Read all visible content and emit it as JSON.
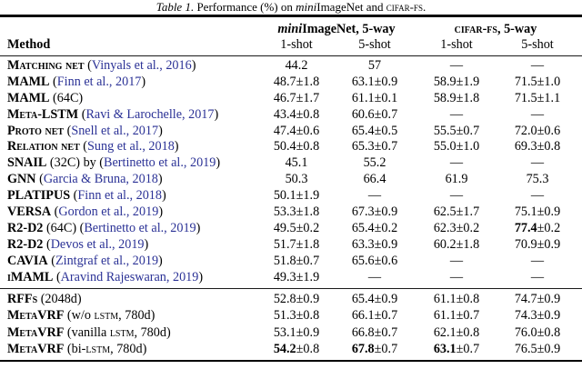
{
  "colors": {
    "citation": "#2b3296",
    "text": "#000000",
    "background": "#ffffff"
  },
  "caption": {
    "parts": [
      {
        "text": "Table 1.",
        "style": "italic"
      },
      {
        "text": " Performance (%) on ",
        "style": "plain"
      },
      {
        "text": "mini",
        "style": "italic"
      },
      {
        "text": "ImageNet and ",
        "style": "plain"
      },
      {
        "text": "CIFAR-FS",
        "style": "sc-lower"
      },
      {
        "text": ".",
        "style": "plain"
      }
    ]
  },
  "header": {
    "method_label": "Method",
    "groups": [
      {
        "parts": [
          {
            "text": "mini",
            "style": "bold-italic"
          },
          {
            "text": "ImageNet, 5-way",
            "style": "bold"
          }
        ]
      },
      {
        "parts": [
          {
            "text": "CIFAR-FS",
            "style": "sc-lower-bold"
          },
          {
            "text": ", 5-way",
            "style": "bold"
          }
        ]
      }
    ],
    "subcols": [
      "1-shot",
      "5-shot",
      "1-shot",
      "5-shot"
    ]
  },
  "table": {
    "sections": [
      {
        "rows": [
          {
            "method": [
              {
                "text": "Matching net",
                "style": "sc-bold"
              },
              {
                "text": " (",
                "style": "plain"
              },
              {
                "text": "Vinyals et al., 2016",
                "style": "cite"
              },
              {
                "text": ")",
                "style": "plain"
              }
            ],
            "cells": [
              {
                "main": "44.2",
                "err": "",
                "bold": false
              },
              {
                "main": "57",
                "err": "",
                "bold": false
              },
              {
                "main": "—",
                "err": "",
                "bold": false
              },
              {
                "main": "—",
                "err": "",
                "bold": false
              }
            ]
          },
          {
            "method": [
              {
                "text": "MAML",
                "style": "sc-bold"
              },
              {
                "text": " (",
                "style": "plain"
              },
              {
                "text": "Finn et al., 2017",
                "style": "cite"
              },
              {
                "text": ")",
                "style": "plain"
              }
            ],
            "cells": [
              {
                "main": "48.7",
                "err": "±1.8",
                "bold": false
              },
              {
                "main": "63.1",
                "err": "±0.9",
                "bold": false
              },
              {
                "main": "58.9",
                "err": "±1.9",
                "bold": false
              },
              {
                "main": "71.5",
                "err": "±1.0",
                "bold": false
              }
            ]
          },
          {
            "method": [
              {
                "text": "MAML",
                "style": "sc-bold"
              },
              {
                "text": " (64C)",
                "style": "plain"
              }
            ],
            "cells": [
              {
                "main": "46.7",
                "err": "±1.7",
                "bold": false
              },
              {
                "main": "61.1",
                "err": "±0.1",
                "bold": false
              },
              {
                "main": "58.9",
                "err": "±1.8",
                "bold": false
              },
              {
                "main": "71.5",
                "err": "±1.1",
                "bold": false
              }
            ]
          },
          {
            "method": [
              {
                "text": "Meta-LSTM",
                "style": "sc-bold"
              },
              {
                "text": " (",
                "style": "plain"
              },
              {
                "text": "Ravi & Larochelle, 2017",
                "style": "cite"
              },
              {
                "text": ")",
                "style": "plain"
              }
            ],
            "cells": [
              {
                "main": "43.4",
                "err": "±0.8",
                "bold": false
              },
              {
                "main": "60.6",
                "err": "±0.7",
                "bold": false
              },
              {
                "main": "—",
                "err": "",
                "bold": false
              },
              {
                "main": "—",
                "err": "",
                "bold": false
              }
            ]
          },
          {
            "method": [
              {
                "text": "Proto net",
                "style": "sc-bold"
              },
              {
                "text": " (",
                "style": "plain"
              },
              {
                "text": "Snell et al., 2017",
                "style": "cite"
              },
              {
                "text": ")",
                "style": "plain"
              }
            ],
            "cells": [
              {
                "main": "47.4",
                "err": "±0.6",
                "bold": false
              },
              {
                "main": "65.4",
                "err": "±0.5",
                "bold": false
              },
              {
                "main": "55.5",
                "err": "±0.7",
                "bold": false
              },
              {
                "main": "72.0",
                "err": "±0.6",
                "bold": false
              }
            ]
          },
          {
            "method": [
              {
                "text": "Relation net",
                "style": "sc-bold"
              },
              {
                "text": " (",
                "style": "plain"
              },
              {
                "text": "Sung et al., 2018",
                "style": "cite"
              },
              {
                "text": ")",
                "style": "plain"
              }
            ],
            "cells": [
              {
                "main": "50.4",
                "err": "±0.8",
                "bold": false
              },
              {
                "main": "65.3",
                "err": "±0.7",
                "bold": false
              },
              {
                "main": "55.0",
                "err": "±1.0",
                "bold": false
              },
              {
                "main": "69.3",
                "err": "±0.8",
                "bold": false
              }
            ]
          },
          {
            "method": [
              {
                "text": "SNAIL",
                "style": "sc-bold"
              },
              {
                "text": " (32C) by (",
                "style": "plain"
              },
              {
                "text": "Bertinetto et al., 2019",
                "style": "cite"
              },
              {
                "text": ")",
                "style": "plain"
              }
            ],
            "cells": [
              {
                "main": "45.1",
                "err": "",
                "bold": false
              },
              {
                "main": "55.2",
                "err": "",
                "bold": false
              },
              {
                "main": "—",
                "err": "",
                "bold": false
              },
              {
                "main": "—",
                "err": "",
                "bold": false
              }
            ]
          },
          {
            "method": [
              {
                "text": "GNN",
                "style": "sc-bold"
              },
              {
                "text": " (",
                "style": "plain"
              },
              {
                "text": "Garcia & Bruna, 2018",
                "style": "cite"
              },
              {
                "text": ")",
                "style": "plain"
              }
            ],
            "cells": [
              {
                "main": "50.3",
                "err": "",
                "bold": false
              },
              {
                "main": "66.4",
                "err": "",
                "bold": false
              },
              {
                "main": "61.9",
                "err": "",
                "bold": false
              },
              {
                "main": "75.3",
                "err": "",
                "bold": false
              }
            ]
          },
          {
            "method": [
              {
                "text": "PLATIPUS",
                "style": "sc-bold"
              },
              {
                "text": " (",
                "style": "plain"
              },
              {
                "text": "Finn et al., 2018",
                "style": "cite"
              },
              {
                "text": ")",
                "style": "plain"
              }
            ],
            "cells": [
              {
                "main": "50.1",
                "err": "±1.9",
                "bold": false
              },
              {
                "main": "—",
                "err": "",
                "bold": false
              },
              {
                "main": "—",
                "err": "",
                "bold": false
              },
              {
                "main": "—",
                "err": "",
                "bold": false
              }
            ]
          },
          {
            "method": [
              {
                "text": "VERSA",
                "style": "sc-bold"
              },
              {
                "text": " (",
                "style": "plain"
              },
              {
                "text": "Gordon et al., 2019",
                "style": "cite"
              },
              {
                "text": ")",
                "style": "plain"
              }
            ],
            "cells": [
              {
                "main": "53.3",
                "err": "±1.8",
                "bold": false
              },
              {
                "main": "67.3",
                "err": "±0.9",
                "bold": false
              },
              {
                "main": "62.5",
                "err": "±1.7",
                "bold": false
              },
              {
                "main": "75.1",
                "err": "±0.9",
                "bold": false
              }
            ]
          },
          {
            "method": [
              {
                "text": "R2-D2",
                "style": "sc-bold"
              },
              {
                "text": " (64C) (",
                "style": "plain"
              },
              {
                "text": "Bertinetto et al., 2019",
                "style": "cite"
              },
              {
                "text": ")",
                "style": "plain"
              }
            ],
            "cells": [
              {
                "main": "49.5",
                "err": "±0.2",
                "bold": false
              },
              {
                "main": "65.4",
                "err": "±0.2",
                "bold": false
              },
              {
                "main": "62.3",
                "err": "±0.2",
                "bold": false
              },
              {
                "main": "77.4",
                "err": "±0.2",
                "bold": true
              }
            ]
          },
          {
            "method": [
              {
                "text": "R2-D2",
                "style": "sc-bold"
              },
              {
                "text": " (",
                "style": "plain"
              },
              {
                "text": "Devos et al., 2019",
                "style": "cite"
              },
              {
                "text": ")",
                "style": "plain"
              }
            ],
            "cells": [
              {
                "main": "51.7",
                "err": "±1.8",
                "bold": false
              },
              {
                "main": "63.3",
                "err": "±0.9",
                "bold": false
              },
              {
                "main": "60.2",
                "err": "±1.8",
                "bold": false
              },
              {
                "main": "70.9",
                "err": "±0.9",
                "bold": false
              }
            ]
          },
          {
            "method": [
              {
                "text": "CAVIA",
                "style": "sc-bold"
              },
              {
                "text": " (",
                "style": "plain"
              },
              {
                "text": "Zintgraf et al., 2019",
                "style": "cite"
              },
              {
                "text": ")",
                "style": "plain"
              }
            ],
            "cells": [
              {
                "main": "51.8",
                "err": "±0.7",
                "bold": false
              },
              {
                "main": "65.6",
                "err": "±0.6",
                "bold": false
              },
              {
                "main": "—",
                "err": "",
                "bold": false
              },
              {
                "main": "—",
                "err": "",
                "bold": false
              }
            ]
          },
          {
            "method": [
              {
                "text": "iMAML",
                "style": "sc-bold"
              },
              {
                "text": " (",
                "style": "plain"
              },
              {
                "text": "Aravind Rajeswaran, 2019",
                "style": "cite"
              },
              {
                "text": ")",
                "style": "plain"
              }
            ],
            "cells": [
              {
                "main": "49.3",
                "err": "±1.9",
                "bold": false
              },
              {
                "main": "—",
                "err": "",
                "bold": false
              },
              {
                "main": "—",
                "err": "",
                "bold": false
              },
              {
                "main": "—",
                "err": "",
                "bold": false
              }
            ]
          }
        ]
      },
      {
        "rows": [
          {
            "method": [
              {
                "text": "RFFs",
                "style": "sc-bold"
              },
              {
                "text": " (2048d)",
                "style": "plain"
              }
            ],
            "cells": [
              {
                "main": "52.8",
                "err": "±0.9",
                "bold": false
              },
              {
                "main": "65.4",
                "err": "±0.9",
                "bold": false
              },
              {
                "main": "61.1",
                "err": "±0.8",
                "bold": false
              },
              {
                "main": "74.7",
                "err": "±0.9",
                "bold": false
              }
            ]
          },
          {
            "method": [
              {
                "text": "MetaVRF",
                "style": "sc-bold"
              },
              {
                "text": " (w/o ",
                "style": "plain"
              },
              {
                "text": "LSTM",
                "style": "sc-lower"
              },
              {
                "text": ", 780d)",
                "style": "plain"
              }
            ],
            "cells": [
              {
                "main": "51.3",
                "err": "±0.8",
                "bold": false
              },
              {
                "main": "66.1",
                "err": "±0.7",
                "bold": false
              },
              {
                "main": "61.1",
                "err": "±0.7",
                "bold": false
              },
              {
                "main": "74.3",
                "err": "±0.9",
                "bold": false
              }
            ]
          },
          {
            "method": [
              {
                "text": "MetaVRF",
                "style": "sc-bold"
              },
              {
                "text": " (vanilla ",
                "style": "plain"
              },
              {
                "text": "LSTM",
                "style": "sc-lower"
              },
              {
                "text": ", 780d)",
                "style": "plain"
              }
            ],
            "cells": [
              {
                "main": "53.1",
                "err": "±0.9",
                "bold": false
              },
              {
                "main": "66.8",
                "err": "±0.7",
                "bold": false
              },
              {
                "main": "62.1",
                "err": "±0.8",
                "bold": false
              },
              {
                "main": "76.0",
                "err": "±0.8",
                "bold": false
              }
            ]
          },
          {
            "method": [
              {
                "text": "MetaVRF",
                "style": "sc-bold"
              },
              {
                "text": " (bi-",
                "style": "plain"
              },
              {
                "text": "LSTM",
                "style": "sc-lower"
              },
              {
                "text": ", 780d)",
                "style": "plain"
              }
            ],
            "cells": [
              {
                "main": "54.2",
                "err": "±0.8",
                "bold": true
              },
              {
                "main": "67.8",
                "err": "±0.7",
                "bold": true
              },
              {
                "main": "63.1",
                "err": "±0.7",
                "bold": true
              },
              {
                "main": "76.5",
                "err": "±0.9",
                "bold": false
              }
            ]
          }
        ]
      }
    ]
  }
}
